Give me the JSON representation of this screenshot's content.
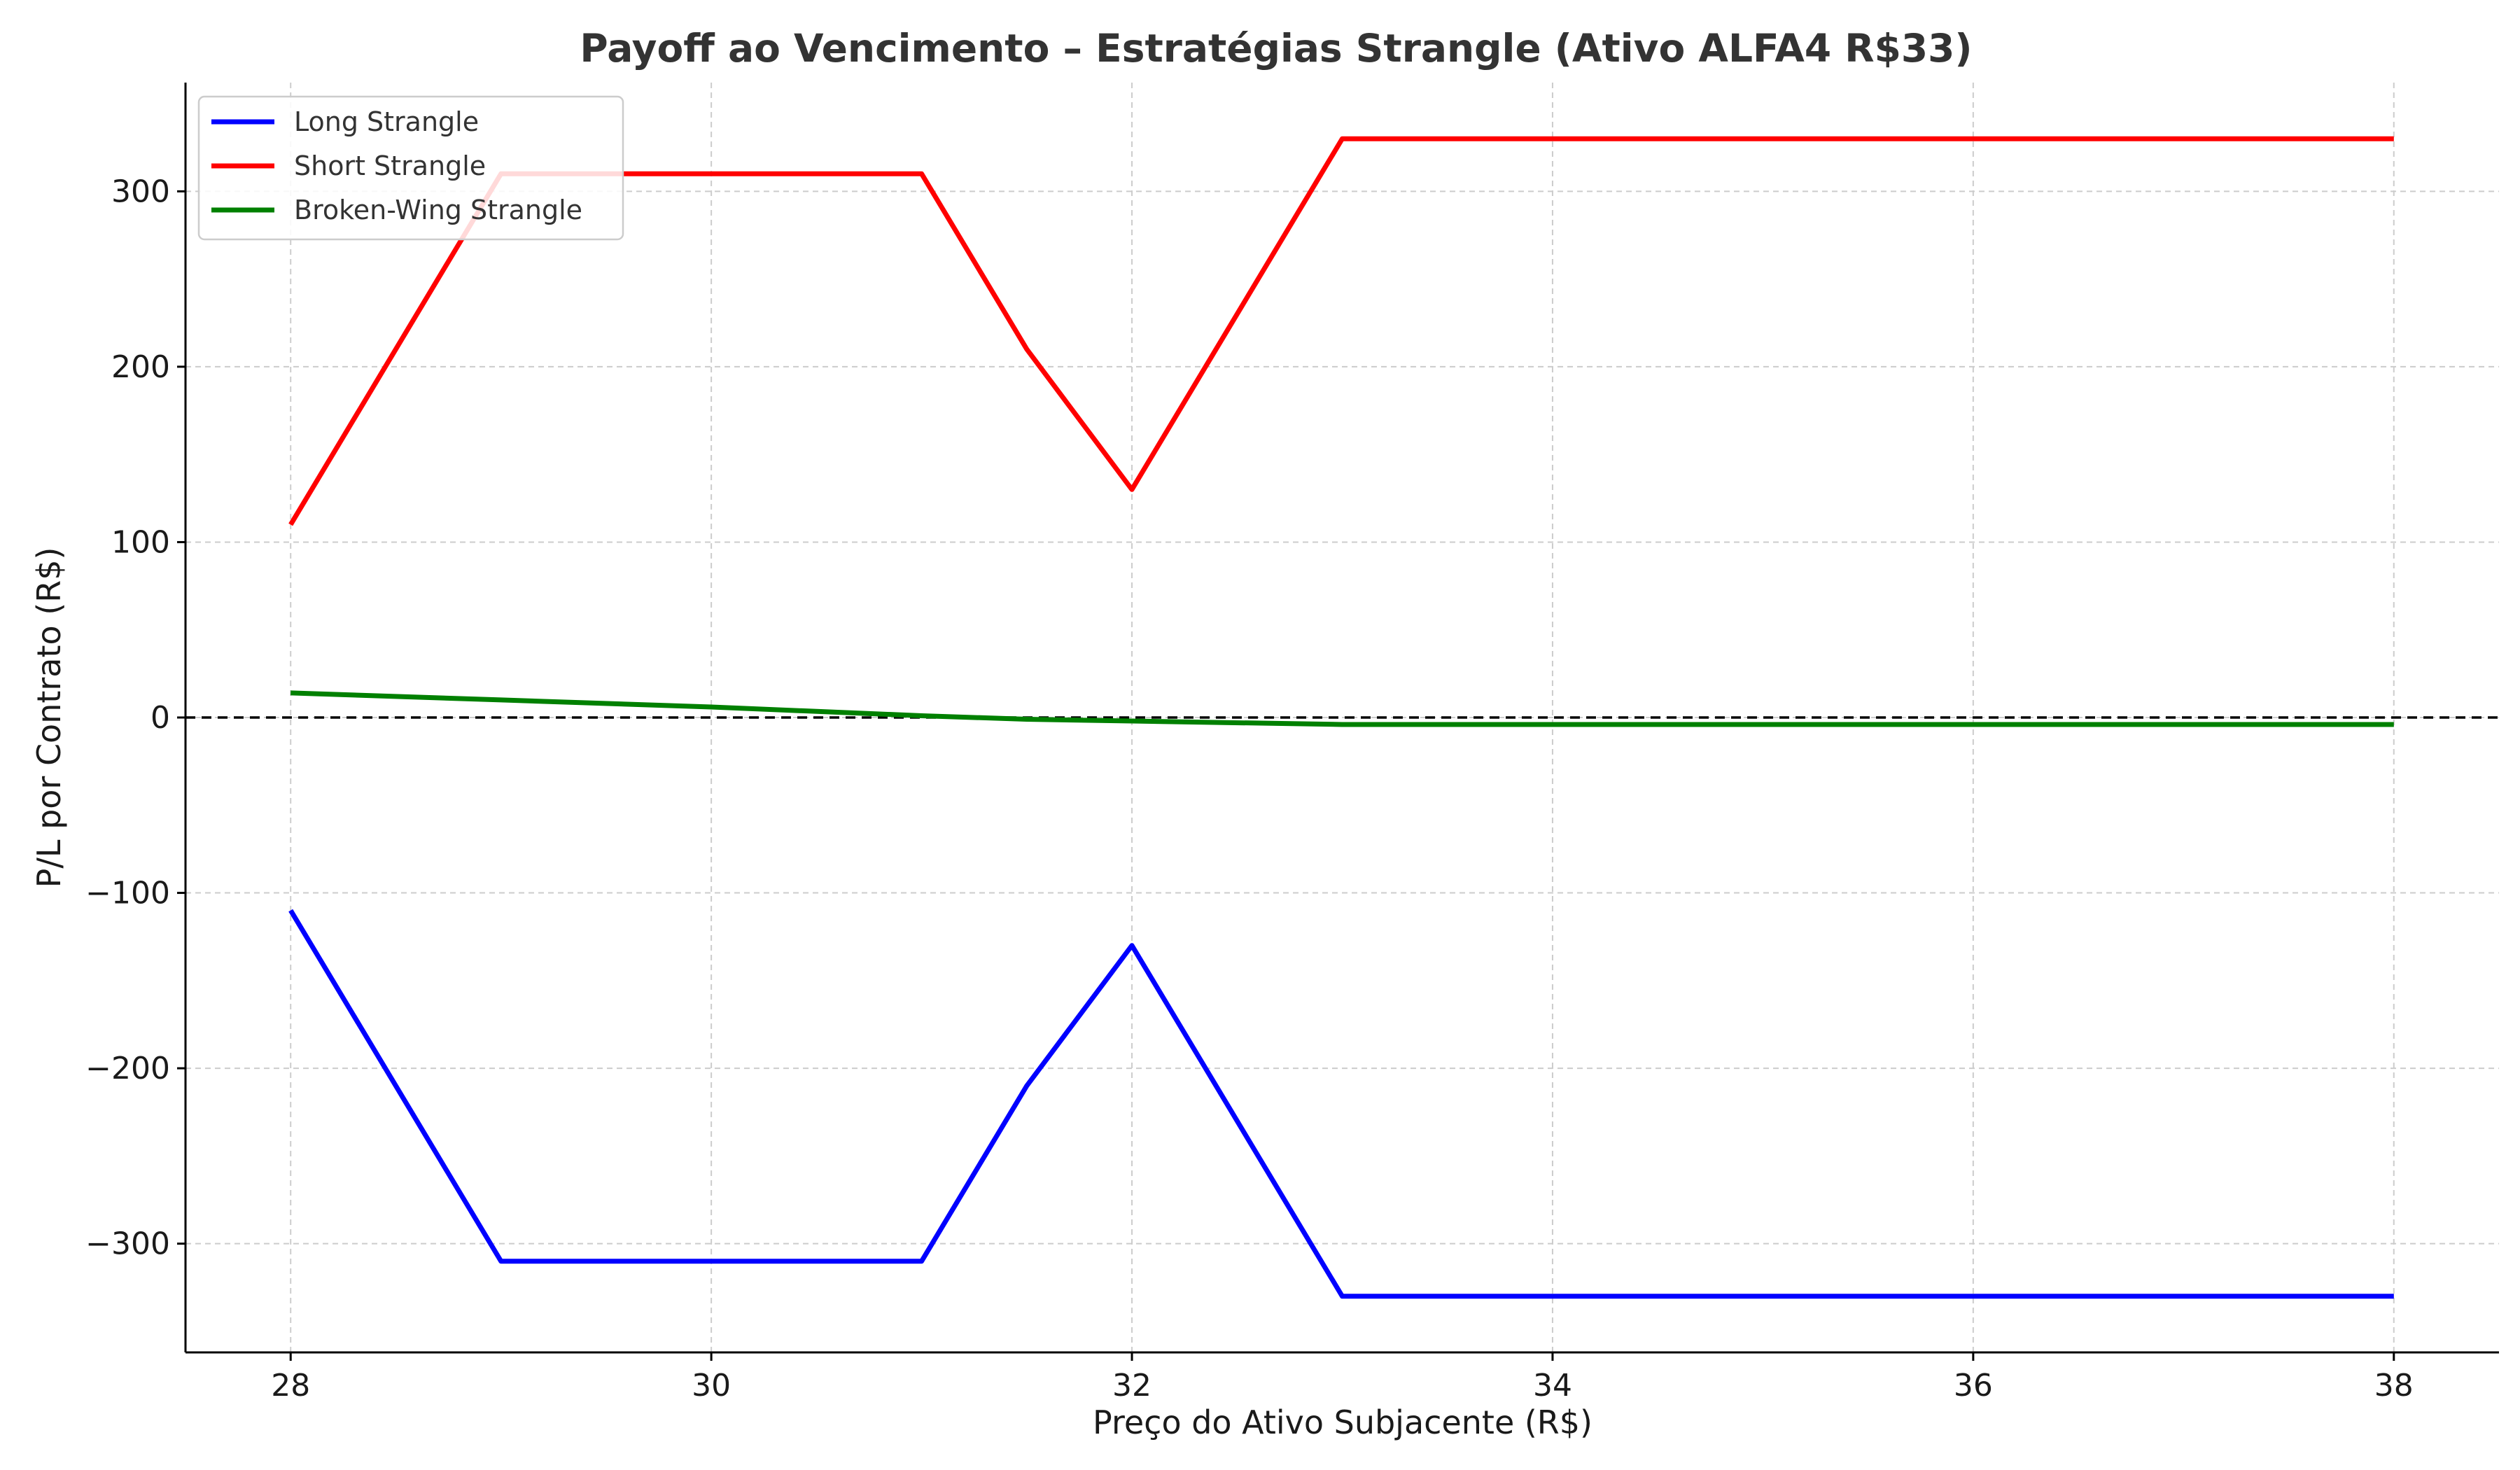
{
  "chart_data": {
    "type": "line",
    "title": "Payoff ao Vencimento – Estratégias Strangle (Ativo ALFA4 R$33)",
    "xlabel": "Preço do Ativo Subjacente (R$)",
    "ylabel": "P/L por Contrato (R$)",
    "xlim": [
      27.5,
      38.5
    ],
    "ylim": [
      -362,
      362
    ],
    "xticks": [
      28,
      30,
      32,
      34,
      36,
      38
    ],
    "yticks": [
      -300,
      -200,
      -100,
      0,
      100,
      200,
      300
    ],
    "xtick_labels": [
      "28",
      "30",
      "32",
      "34",
      "36",
      "38"
    ],
    "ytick_labels": [
      "−300",
      "−200",
      "−100",
      "0",
      "100",
      "200",
      "300"
    ],
    "grid": true,
    "legend_position": "top-left",
    "reference_line": {
      "y": 0,
      "style": "dashed",
      "color": "#000000"
    },
    "series": [
      {
        "name": "Long Strangle",
        "color": "#0000ff",
        "x": [
          28,
          29,
          31,
          31.5,
          32,
          33,
          38
        ],
        "y": [
          -110,
          -310,
          -310,
          -210,
          -130,
          -330,
          -330
        ]
      },
      {
        "name": "Short Strangle",
        "color": "#ff0000",
        "x": [
          28,
          29,
          31,
          31.5,
          32,
          33,
          38
        ],
        "y": [
          110,
          310,
          310,
          210,
          130,
          330,
          330
        ]
      },
      {
        "name": "Broken-Wing Strangle",
        "color": "#008000",
        "x": [
          28,
          29,
          30,
          31,
          31.5,
          32,
          33,
          38
        ],
        "y": [
          14,
          10,
          6,
          1,
          -1,
          -2,
          -4,
          -4
        ]
      }
    ]
  }
}
